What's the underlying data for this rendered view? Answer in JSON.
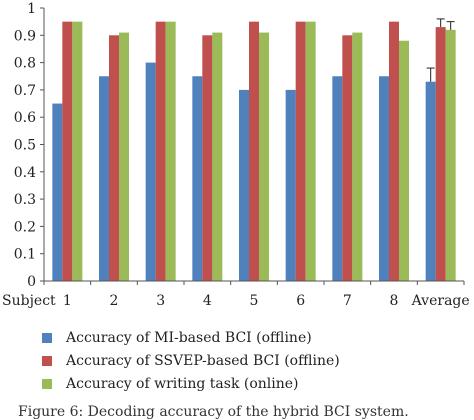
{
  "chart_data": {
    "type": "bar",
    "x_axis_title": "Subject",
    "categories": [
      "1",
      "2",
      "3",
      "4",
      "5",
      "6",
      "7",
      "8",
      "Average"
    ],
    "ylim": [
      0,
      1
    ],
    "yticks": [
      "0",
      "0.1",
      "0.2",
      "0.3",
      "0.4",
      "0.5",
      "0.6",
      "0.7",
      "0.8",
      "0.9",
      "1"
    ],
    "grid": false,
    "legend_position": "bottom",
    "series": [
      {
        "name": "Accuracy of MI-based BCI (offline)",
        "color": "#4F81BD",
        "values": [
          0.65,
          0.75,
          0.8,
          0.75,
          0.7,
          0.7,
          0.75,
          0.75,
          0.73
        ],
        "average_error": 0.05
      },
      {
        "name": "Accuracy of SSVEP-based BCI (offline)",
        "color": "#C0504D",
        "values": [
          0.95,
          0.9,
          0.95,
          0.9,
          0.95,
          0.95,
          0.9,
          0.95,
          0.93
        ],
        "average_error": 0.03
      },
      {
        "name": "Accuracy of writing task (online)",
        "color": "#9BBB59",
        "values": [
          0.95,
          0.91,
          0.95,
          0.91,
          0.91,
          0.95,
          0.91,
          0.88,
          0.92
        ],
        "average_error": 0.03
      }
    ]
  },
  "caption": "Figure 6: Decoding accuracy of the hybrid BCI system."
}
